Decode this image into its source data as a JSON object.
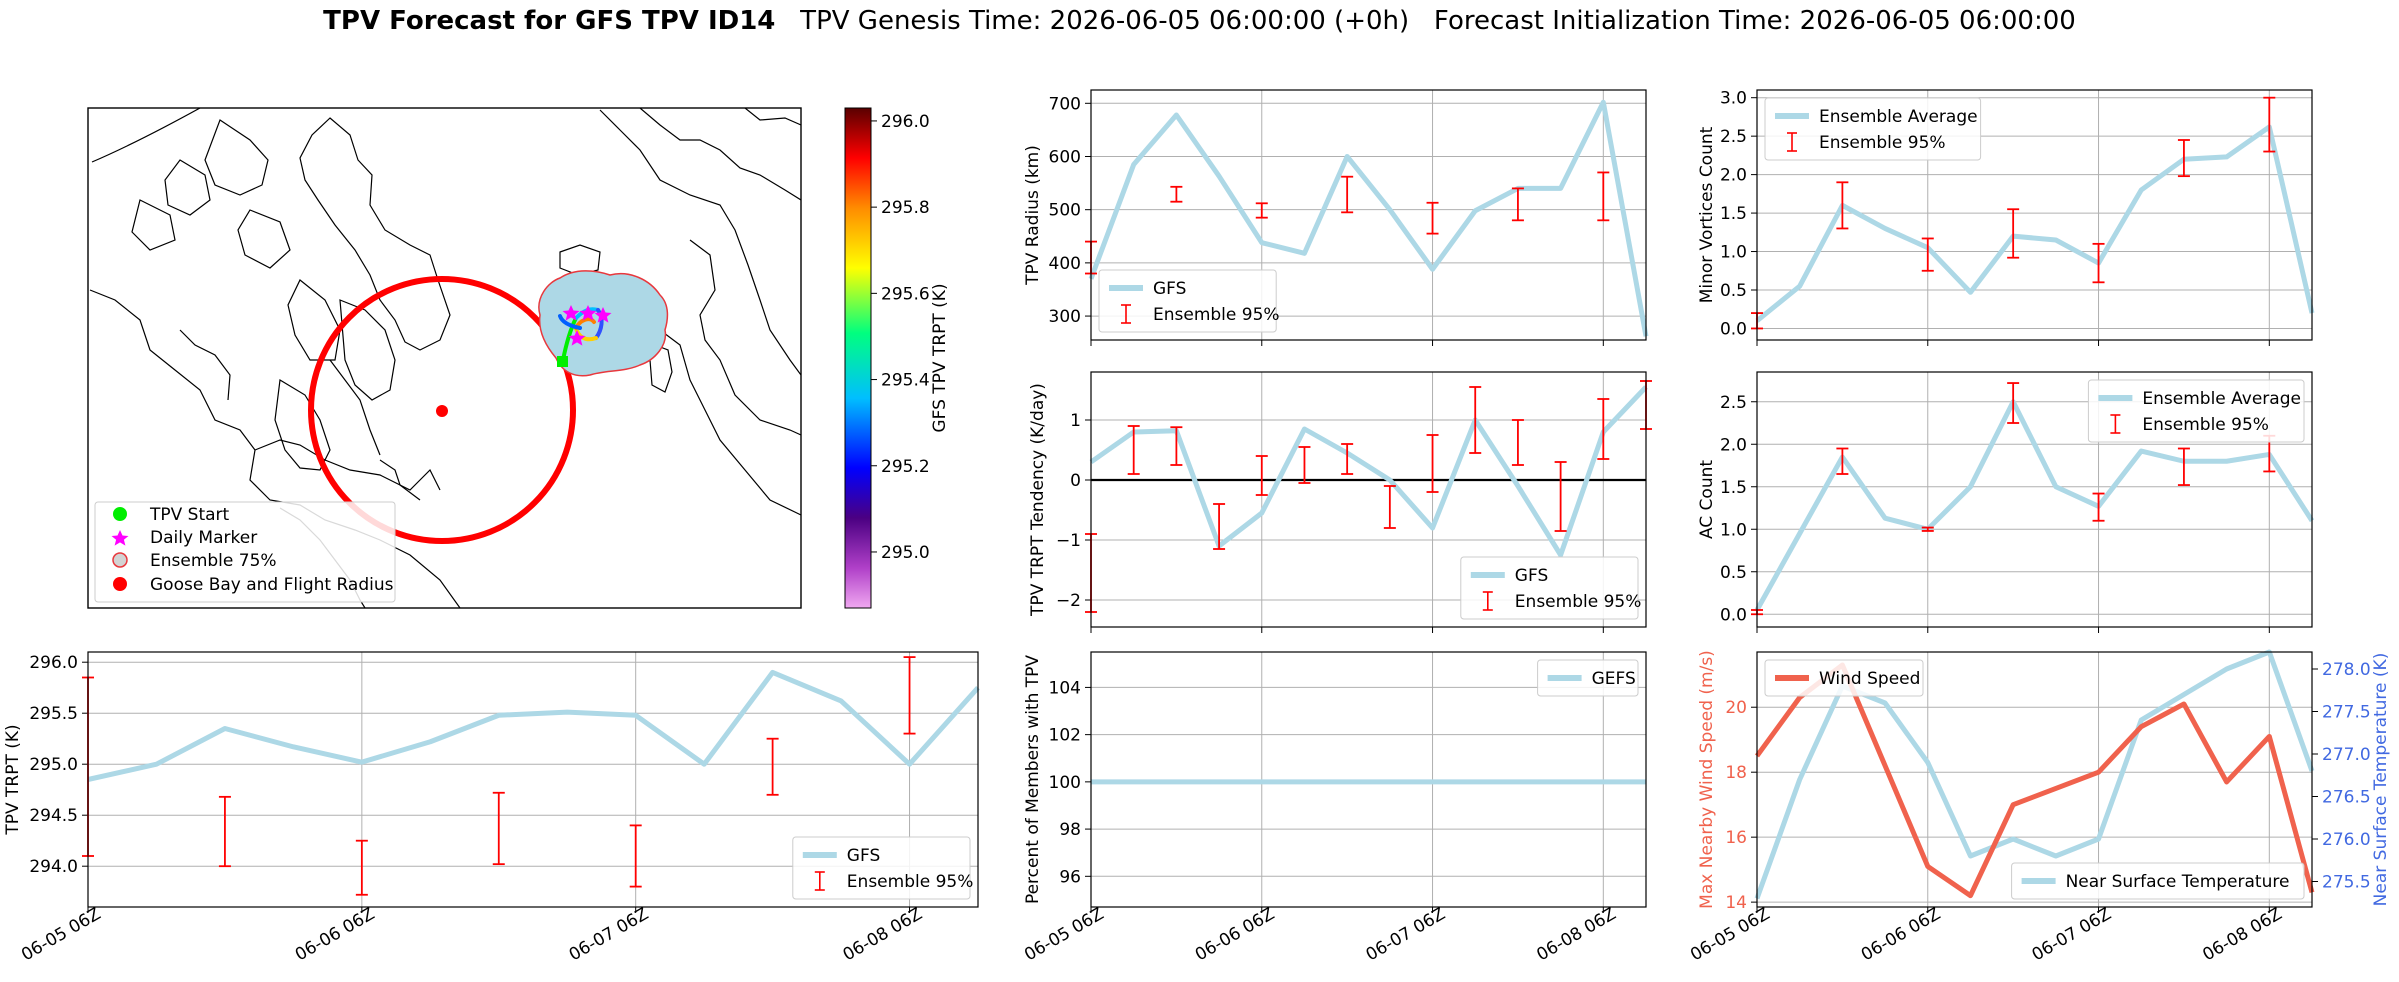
{
  "title": {
    "bold": "TPV Forecast for GFS TPV ID14",
    "rest": "   TPV Genesis Time: 2026-06-05 06:00:00 (+0h)   Forecast Initialization Time: 2026-06-05 06:00:00"
  },
  "colors": {
    "line": "#add8e6",
    "error": "#ff0000",
    "wind": "#f0624d",
    "temp_axis": "#4169e1",
    "ensemble_fill": "#add8e6",
    "ensemble_edge": "#e8383d",
    "start": "#00ee00",
    "marker": "#ff00ff"
  },
  "map": {
    "legend": [
      "TPV Start",
      "Daily Marker",
      "Ensemble 75%",
      "Goose Bay and Flight Radius"
    ],
    "colorbar": {
      "label": "GFS TPV TRPT (K)",
      "ticks": [
        "296.0",
        "295.8",
        "295.6",
        "295.4",
        "295.2",
        "295.0"
      ],
      "tick_values": [
        296.0,
        295.8,
        295.6,
        295.4,
        295.2,
        295.0
      ],
      "range": [
        294.87,
        296.03
      ]
    }
  },
  "xticks": [
    "06-05 06Z",
    "06-06 06Z",
    "06-07 06Z",
    "06-08 06Z"
  ],
  "chart_data": [
    {
      "id": "radius",
      "type": "line",
      "ylabel": "TPV Radius (km)",
      "ylim": [
        255,
        725
      ],
      "yticks": [
        300,
        400,
        500,
        600,
        700
      ],
      "ytick_labels": [
        "300",
        "400",
        "500",
        "600",
        "700"
      ],
      "zero_line": false,
      "legend": [
        "GFS",
        "Ensemble 95%"
      ],
      "legend_pos": "bottom-left",
      "x": [
        0,
        0.25,
        0.5,
        0.75,
        1.0,
        1.25,
        1.5,
        1.75,
        2.0,
        2.25,
        2.5,
        2.75,
        3.0,
        3.25
      ],
      "values": [
        370,
        585,
        678,
        563,
        438,
        418,
        600,
        500,
        388,
        498,
        540,
        540,
        702,
        262
      ],
      "err_x": [
        0,
        0.5,
        1.0,
        1.5,
        2.0,
        2.5,
        3.0
      ],
      "err_lo": [
        380,
        515,
        485,
        495,
        455,
        480,
        480
      ],
      "err_hi": [
        440,
        543,
        512,
        562,
        513,
        540,
        570
      ]
    },
    {
      "id": "tendency",
      "type": "line",
      "ylabel": "TPV TRPT Tendency (K/day)",
      "ylim": [
        -2.45,
        1.8
      ],
      "yticks": [
        -2,
        -1,
        0,
        1
      ],
      "ytick_labels": [
        "−2",
        "−1",
        "0",
        "1"
      ],
      "zero_line": true,
      "legend": [
        "GFS",
        "Ensemble 95%"
      ],
      "legend_pos": "bottom-right",
      "x": [
        0,
        0.25,
        0.5,
        0.75,
        1.0,
        1.25,
        1.5,
        1.75,
        2.0,
        2.25,
        2.5,
        2.75,
        3.0,
        3.25
      ],
      "values": [
        0.3,
        0.8,
        0.82,
        -1.1,
        -0.55,
        0.85,
        0.45,
        0.0,
        -0.8,
        1.0,
        -0.1,
        -1.25,
        0.8,
        1.55
      ],
      "err_x": [
        0,
        0.25,
        0.5,
        0.75,
        1.0,
        1.25,
        1.5,
        1.75,
        2.0,
        2.25,
        2.5,
        2.75,
        3.0,
        3.25
      ],
      "err_lo": [
        -2.2,
        0.1,
        0.25,
        -1.15,
        -0.25,
        -0.05,
        0.1,
        -0.8,
        -0.2,
        0.45,
        0.25,
        -0.85,
        0.35,
        0.85
      ],
      "err_hi": [
        -0.9,
        0.9,
        0.88,
        -0.4,
        0.4,
        0.55,
        0.6,
        -0.1,
        0.75,
        1.55,
        1.0,
        0.3,
        1.35,
        1.65
      ]
    },
    {
      "id": "percent",
      "type": "line",
      "ylabel": "Percent of Members with TPV",
      "ylim": [
        94.7,
        105.5
      ],
      "yticks": [
        96,
        98,
        100,
        102,
        104
      ],
      "ytick_labels": [
        "96",
        "98",
        "100",
        "102",
        "104"
      ],
      "zero_line": false,
      "legend": [
        "GEFS"
      ],
      "legend_pos": "top-right",
      "x": [
        0,
        3.25
      ],
      "values": [
        100,
        100
      ]
    },
    {
      "id": "trpt",
      "type": "line",
      "ylabel": "TPV TRPT (K)",
      "ylim": [
        293.6,
        296.1
      ],
      "yticks": [
        294.0,
        294.5,
        295.0,
        295.5,
        296.0
      ],
      "ytick_labels": [
        "294.0",
        "294.5",
        "295.0",
        "295.5",
        "296.0"
      ],
      "zero_line": false,
      "legend": [
        "GFS",
        "Ensemble 95%"
      ],
      "legend_pos": "bottom-right",
      "x": [
        0,
        0.25,
        0.5,
        0.75,
        1.0,
        1.25,
        1.5,
        1.75,
        2.0,
        2.25,
        2.5,
        2.75,
        3.0,
        3.25
      ],
      "values": [
        294.85,
        295.0,
        295.35,
        295.17,
        295.02,
        295.22,
        295.48,
        295.51,
        295.48,
        295.0,
        295.9,
        295.62,
        295.0,
        295.75
      ],
      "err_x": [
        0,
        0.5,
        1.0,
        1.5,
        2.0,
        2.5,
        3.0
      ],
      "err_lo": [
        294.1,
        294.0,
        293.72,
        294.02,
        293.8,
        294.7,
        295.3
      ],
      "err_hi": [
        295.85,
        294.68,
        294.25,
        294.72,
        294.4,
        295.25,
        296.05
      ]
    },
    {
      "id": "minor",
      "type": "line",
      "ylabel": "Minor Vortices Count",
      "ylim": [
        -0.15,
        3.1
      ],
      "yticks": [
        0,
        0.5,
        1.0,
        1.5,
        2.0,
        2.5,
        3.0
      ],
      "ytick_labels": [
        "0.0",
        "0.5",
        "1.0",
        "1.5",
        "2.0",
        "2.5",
        "3.0"
      ],
      "zero_line": false,
      "legend": [
        "Ensemble Average",
        "Ensemble 95%"
      ],
      "legend_pos": "top-left",
      "x": [
        0,
        0.25,
        0.5,
        0.75,
        1.0,
        1.25,
        1.5,
        1.75,
        2.0,
        2.25,
        2.5,
        2.75,
        3.0,
        3.25
      ],
      "values": [
        0.1,
        0.55,
        1.6,
        1.3,
        1.05,
        0.47,
        1.2,
        1.15,
        0.85,
        1.8,
        2.2,
        2.23,
        2.62,
        0.2
      ],
      "err_x": [
        0,
        0.5,
        1.0,
        1.5,
        2.0,
        2.5,
        3.0
      ],
      "err_lo": [
        0.0,
        1.3,
        0.75,
        0.92,
        0.6,
        1.98,
        2.3
      ],
      "err_hi": [
        0.2,
        1.9,
        1.17,
        1.55,
        1.1,
        2.45,
        3.0
      ]
    },
    {
      "id": "ac",
      "type": "line",
      "ylabel": "AC Count",
      "ylim": [
        -0.15,
        2.85
      ],
      "yticks": [
        0,
        0.5,
        1.0,
        1.5,
        2.0,
        2.5
      ],
      "ytick_labels": [
        "0.0",
        "0.5",
        "1.0",
        "1.5",
        "2.0",
        "2.5"
      ],
      "zero_line": false,
      "legend": [
        "Ensemble Average",
        "Ensemble 95%"
      ],
      "legend_pos": "top-right",
      "x": [
        0,
        0.25,
        0.5,
        0.75,
        1.0,
        1.25,
        1.5,
        1.75,
        2.0,
        2.25,
        2.5,
        2.75,
        3.0,
        3.25
      ],
      "values": [
        0.05,
        0.95,
        1.85,
        1.13,
        1.0,
        1.5,
        2.5,
        1.5,
        1.27,
        1.92,
        1.8,
        1.8,
        1.88,
        1.1
      ],
      "err_x": [
        0,
        0.5,
        1.0,
        1.5,
        2.0,
        2.5,
        3.0
      ],
      "err_lo": [
        0.0,
        1.65,
        0.98,
        2.25,
        1.1,
        1.52,
        1.68
      ],
      "err_hi": [
        0.05,
        1.95,
        1.02,
        2.72,
        1.42,
        1.95,
        2.1
      ]
    },
    {
      "id": "wind",
      "type": "line",
      "ylabel": "Max Nearby Wind Speed (m/s)",
      "ylabel2": "Near Surface Temperature (K)",
      "ylim": [
        13.85,
        21.7
      ],
      "ylim2": [
        275.2,
        278.2
      ],
      "yticks": [
        14,
        16,
        18,
        20
      ],
      "ytick_labels": [
        "14",
        "16",
        "18",
        "20"
      ],
      "yticks2": [
        275.5,
        276.0,
        276.5,
        277.0,
        277.5,
        278.0
      ],
      "ytick_labels2": [
        "275.5",
        "276.0",
        "276.5",
        "277.0",
        "277.5",
        "278.0"
      ],
      "legend": [
        "Wind Speed"
      ],
      "legend2": [
        "Near Surface Temperature"
      ],
      "x": [
        0,
        0.25,
        0.5,
        0.75,
        1.0,
        1.25,
        1.5,
        1.75,
        2.0,
        2.25,
        2.5,
        2.75,
        3.0,
        3.25
      ],
      "series": [
        {
          "name": "Wind Speed",
          "values": [
            18.5,
            20.3,
            21.3,
            18.2,
            15.1,
            14.2,
            17.0,
            17.5,
            18.0,
            19.4,
            20.1,
            17.7,
            19.1,
            14.3
          ]
        },
        {
          "name": "Near Surface Temperature",
          "values": [
            275.3,
            276.7,
            277.8,
            277.6,
            276.9,
            275.8,
            276.0,
            275.8,
            276.0,
            277.4,
            277.7,
            278.0,
            278.2,
            276.8
          ]
        }
      ]
    }
  ]
}
